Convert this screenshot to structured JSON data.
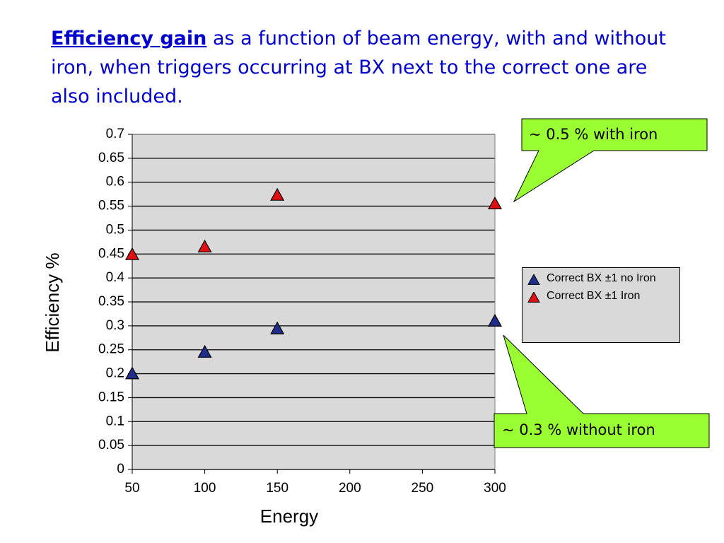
{
  "slide": {
    "title_lead": "Efficiency gain",
    "title_rest": "as a function of beam energy, with and without iron, when triggers occurring at BX next to the correct one are also included."
  },
  "chart_data": {
    "type": "scatter",
    "xlabel": "Energy",
    "ylabel": "Efficiency %",
    "x": [
      50,
      100,
      150,
      300
    ],
    "series": [
      {
        "name": "Correct BX ±1 no Iron",
        "color": "#1f2e8c",
        "values": [
          0.2,
          0.245,
          0.294,
          0.31
        ]
      },
      {
        "name": "Correct BX ±1 Iron",
        "color": "#e01010",
        "values": [
          0.449,
          0.465,
          0.573,
          0.555
        ]
      }
    ],
    "xlim": [
      50,
      300
    ],
    "xticks": [
      50,
      100,
      150,
      200,
      250,
      300
    ],
    "ylim": [
      0,
      0.7
    ],
    "yticks": [
      0,
      0.05,
      0.1,
      0.15,
      0.2,
      0.25,
      0.3,
      0.35,
      0.4,
      0.45,
      0.5,
      0.55,
      0.6,
      0.65,
      0.7
    ],
    "grid": true,
    "legend": "right",
    "annotations": [
      "~ 0.5 % with iron",
      "~ 0.3 % without iron"
    ]
  }
}
